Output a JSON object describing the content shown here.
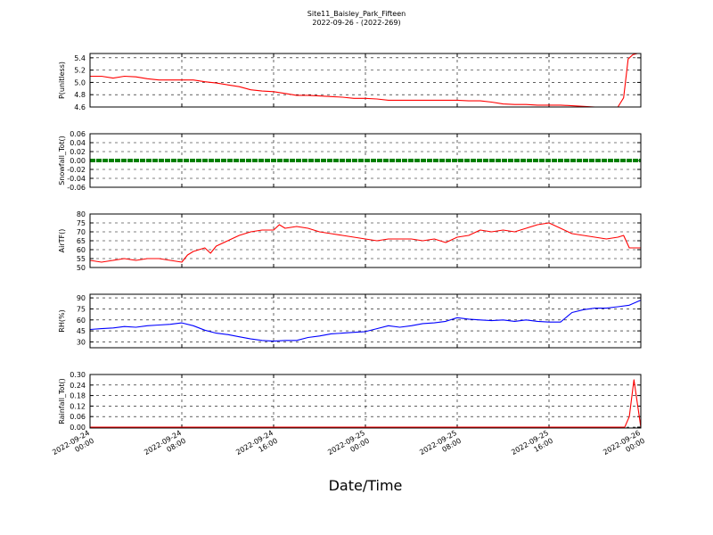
{
  "title": [
    "Site11_Baisley_Park_Fifteen",
    "2022-09-26 - (2022-269)"
  ],
  "xlabel": "Date/Time",
  "x_ticks": [
    [
      "2022-09-24",
      "00:00"
    ],
    [
      "2022-09-24",
      "08:00"
    ],
    [
      "2022-09-24",
      "16:00"
    ],
    [
      "2022-09-25",
      "00:00"
    ],
    [
      "2022-09-25",
      "08:00"
    ],
    [
      "2022-09-25",
      "16:00"
    ],
    [
      "2022-09-26",
      "00:00"
    ]
  ],
  "chart_data": [
    {
      "type": "line",
      "ylabel": "P(unitless)",
      "color": "#ff0000",
      "ylim": [
        4.6,
        5.47
      ],
      "yticks": [
        "4.6",
        "4.8",
        "5.0",
        "5.2",
        "5.4"
      ],
      "x_hours": [
        0,
        1,
        2,
        3,
        4,
        5,
        6,
        7,
        8,
        9,
        10,
        11,
        12,
        13,
        14,
        15,
        16,
        17,
        18,
        19,
        20,
        21,
        22,
        23,
        24,
        25,
        26,
        27,
        28,
        29,
        30,
        31,
        32,
        33,
        34,
        35,
        36,
        37,
        38,
        39,
        40,
        41,
        42,
        43,
        44,
        45,
        46,
        46.5,
        46.9,
        47.3,
        47.7,
        48
      ],
      "values": [
        5.1,
        5.1,
        5.07,
        5.1,
        5.09,
        5.06,
        5.04,
        5.04,
        5.04,
        5.04,
        5.01,
        4.99,
        4.96,
        4.93,
        4.88,
        4.86,
        4.85,
        4.82,
        4.79,
        4.79,
        4.78,
        4.77,
        4.76,
        4.74,
        4.74,
        4.73,
        4.71,
        4.71,
        4.71,
        4.71,
        4.71,
        4.71,
        4.71,
        4.7,
        4.7,
        4.68,
        4.65,
        4.64,
        4.64,
        4.63,
        4.63,
        4.63,
        4.62,
        4.61,
        4.6,
        4.6,
        4.6,
        4.75,
        5.38,
        5.45,
        5.47,
        5.47
      ]
    },
    {
      "type": "line",
      "ylabel": "Snowfall_Tot()",
      "color": "#008000",
      "ylim": [
        -0.06,
        0.06
      ],
      "yticks": [
        "-0.06",
        "-0.04",
        "-0.02",
        "0.00",
        "0.02",
        "0.04",
        "0.06"
      ],
      "x_hours": [
        0,
        48
      ],
      "values": [
        0,
        0
      ]
    },
    {
      "type": "line",
      "ylabel": "AirTF()",
      "color": "#ff0000",
      "ylim": [
        50,
        80
      ],
      "yticks": [
        "50",
        "55",
        "60",
        "65",
        "70",
        "75",
        "80"
      ],
      "x_hours": [
        0,
        1,
        2,
        3,
        4,
        5,
        6,
        7,
        8,
        8.5,
        9,
        10,
        10.5,
        11,
        12,
        13,
        14,
        15,
        16,
        16.5,
        17,
        18,
        19,
        20,
        21,
        22,
        23,
        24,
        25,
        26,
        27,
        28,
        29,
        30,
        31,
        32,
        33,
        34,
        35,
        36,
        37,
        38,
        39,
        40,
        41,
        42,
        43,
        44,
        45,
        46,
        46.5,
        47,
        48
      ],
      "values": [
        54,
        53,
        54,
        55,
        54,
        55,
        55,
        54,
        53,
        57,
        59,
        61,
        58,
        62,
        65,
        68,
        70,
        71,
        71,
        74,
        72,
        73,
        72,
        70,
        69,
        68,
        67,
        66,
        65,
        66,
        66,
        66,
        65,
        66,
        64,
        67,
        68,
        71,
        70,
        71,
        70,
        72,
        74,
        75,
        72,
        69,
        68,
        67,
        66,
        67,
        68,
        61,
        61
      ]
    },
    {
      "type": "line",
      "ylabel": "RH(%)",
      "color": "#0000ff",
      "ylim": [
        22,
        95
      ],
      "yticks": [
        "30",
        "45",
        "60",
        "75",
        "90"
      ],
      "x_hours": [
        0,
        1,
        2,
        3,
        4,
        5,
        6,
        7,
        8,
        9,
        10,
        11,
        12,
        13,
        14,
        15,
        16,
        17,
        18,
        19,
        20,
        21,
        22,
        23,
        24,
        25,
        26,
        27,
        28,
        29,
        30,
        31,
        32,
        33,
        34,
        35,
        36,
        37,
        38,
        39,
        40,
        41,
        42,
        43,
        44,
        45,
        46,
        47,
        48
      ],
      "values": [
        47,
        48,
        49,
        51,
        50,
        52,
        53,
        54,
        56,
        52,
        46,
        42,
        40,
        37,
        34,
        32,
        31,
        32,
        32,
        36,
        38,
        41,
        42,
        43,
        44,
        48,
        52,
        50,
        52,
        55,
        56,
        58,
        63,
        61,
        60,
        59,
        60,
        58,
        60,
        58,
        57,
        57,
        70,
        74,
        76,
        76,
        78,
        80,
        87
      ]
    },
    {
      "type": "line",
      "ylabel": "Rainfall_Tot()",
      "color": "#ff0000",
      "ylim": [
        -0.005,
        0.3
      ],
      "yticks": [
        "0.00",
        "0.06",
        "0.12",
        "0.18",
        "0.24",
        "0.30"
      ],
      "x_hours": [
        0,
        46,
        46.6,
        47,
        47.4,
        48
      ],
      "values": [
        0,
        0,
        0,
        0.06,
        0.27,
        0
      ]
    }
  ]
}
